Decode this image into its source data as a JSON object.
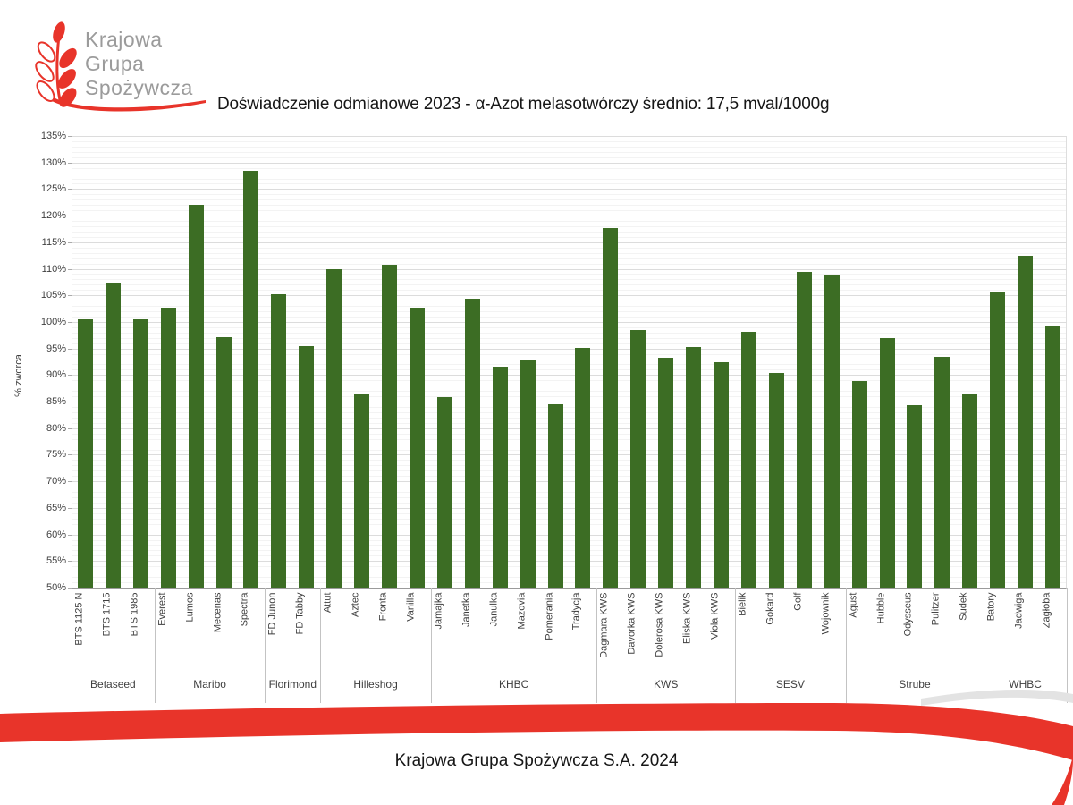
{
  "logo": {
    "line1": "Krajowa",
    "line2": "Grupa",
    "line3": "Spożywcza"
  },
  "title": "Doświadczenie odmianowe 2023 - α-Azot melasotwórczy średnio: 17,5 mval/1000g",
  "footer": "Krajowa Grupa Spożywcza S.A. 2024",
  "colors": {
    "bar_green": "#3c6d24",
    "brand_red": "#e8342a",
    "logo_gray": "#9b9b9b"
  },
  "chart_data": {
    "type": "bar",
    "title": "Doświadczenie odmianowe 2023 - α-Azot melasotwórczy średnio: 17,5 mval/1000g",
    "xlabel": "",
    "ylabel": "% zworca",
    "ylim": [
      50,
      135
    ],
    "ytick_step": 5,
    "ytick_format": "percent",
    "grid": true,
    "legend": "none",
    "groups": [
      {
        "name": "Betaseed",
        "items": [
          {
            "label": "BTS 1125 N",
            "value": 100.5
          },
          {
            "label": "BTS 1715",
            "value": 107.4
          },
          {
            "label": "BTS 1985",
            "value": 100.5
          }
        ]
      },
      {
        "name": "Maribo",
        "items": [
          {
            "label": "Everest",
            "value": 102.6
          },
          {
            "label": "Lumos",
            "value": 122.0
          },
          {
            "label": "Mecenas",
            "value": 97.2
          },
          {
            "label": "Spectra",
            "value": 128.4
          }
        ]
      },
      {
        "name": "Florimond",
        "items": [
          {
            "label": "FD Junon",
            "value": 105.2
          },
          {
            "label": "FD Tabby",
            "value": 95.4
          }
        ]
      },
      {
        "name": "Hilleshog",
        "items": [
          {
            "label": "Attut",
            "value": 110.0
          },
          {
            "label": "Aztec",
            "value": 86.3
          },
          {
            "label": "Fronta",
            "value": 110.7
          },
          {
            "label": "Vanilla",
            "value": 102.6
          }
        ]
      },
      {
        "name": "KHBC",
        "items": [
          {
            "label": "Jamajka",
            "value": 85.9
          },
          {
            "label": "Janetka",
            "value": 104.4
          },
          {
            "label": "Janulka",
            "value": 91.5
          },
          {
            "label": "Mazovia",
            "value": 92.8
          },
          {
            "label": "Pomerania",
            "value": 84.5
          },
          {
            "label": "Tradycja",
            "value": 95.1
          }
        ]
      },
      {
        "name": "KWS",
        "items": [
          {
            "label": "Dagmara KWS",
            "value": 117.6
          },
          {
            "label": "Davorka KWS",
            "value": 98.4
          },
          {
            "label": "Dolerosa KWS",
            "value": 93.2
          },
          {
            "label": "Eliska KWS",
            "value": 95.3
          },
          {
            "label": "Viola KWS",
            "value": 92.5
          }
        ]
      },
      {
        "name": "SESV",
        "items": [
          {
            "label": "Bielik",
            "value": 98.1
          },
          {
            "label": "Gokard",
            "value": 90.4
          },
          {
            "label": "Golf",
            "value": 109.5
          },
          {
            "label": "Wojownik",
            "value": 108.9
          }
        ]
      },
      {
        "name": "Strube",
        "items": [
          {
            "label": "Agust",
            "value": 88.9
          },
          {
            "label": "Hubble",
            "value": 97.0
          },
          {
            "label": "Odysseus",
            "value": 84.4
          },
          {
            "label": "Pulitzer",
            "value": 93.5
          },
          {
            "label": "Sudek",
            "value": 86.3
          }
        ]
      },
      {
        "name": "WHBC",
        "items": [
          {
            "label": "Batory",
            "value": 105.6
          },
          {
            "label": "Jadwiga",
            "value": 112.4
          },
          {
            "label": "Zagłoba",
            "value": 99.3
          }
        ]
      }
    ]
  }
}
